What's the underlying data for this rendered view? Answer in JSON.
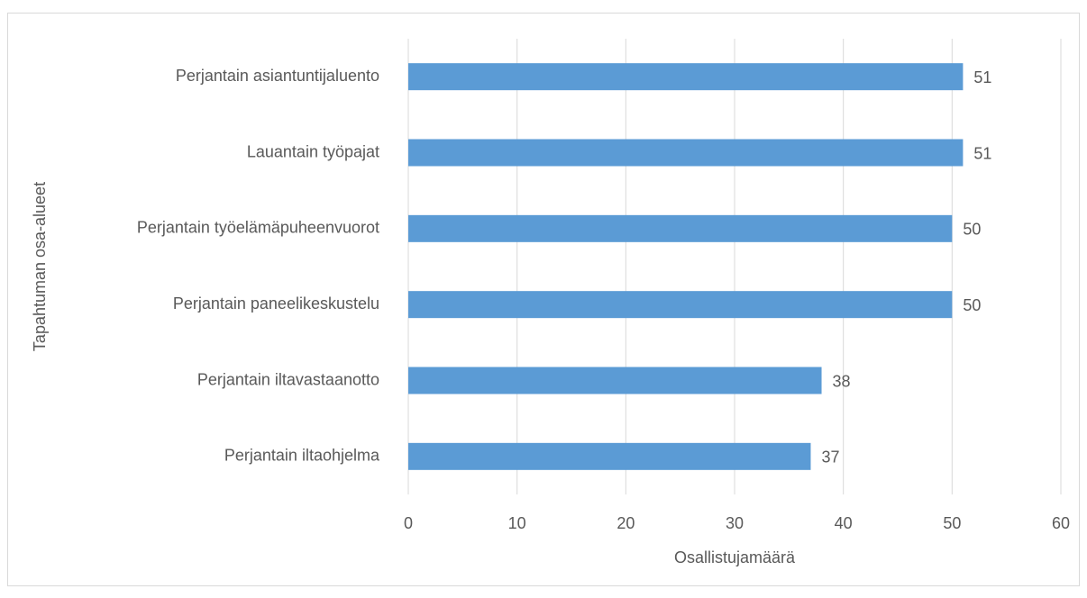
{
  "chart_data": {
    "type": "bar",
    "orientation": "horizontal",
    "categories": [
      "Perjantain asiantuntijaluento",
      "Lauantain työpajat",
      "Perjantain työelämäpuheenvuorot",
      "Perjantain paneelikeskustelu",
      "Perjantain iltavastaanotto",
      "Perjantain iltaohjelma"
    ],
    "values": [
      51,
      51,
      50,
      50,
      38,
      37
    ],
    "color": "#5b9bd5",
    "xlabel": "Osallistujamäärä",
    "ylabel": "Tapahtuman osa-alueet",
    "xlim": [
      0,
      60
    ],
    "xticks": [
      0,
      10,
      20,
      30,
      40,
      50,
      60
    ],
    "grid": true,
    "data_labels": true
  }
}
